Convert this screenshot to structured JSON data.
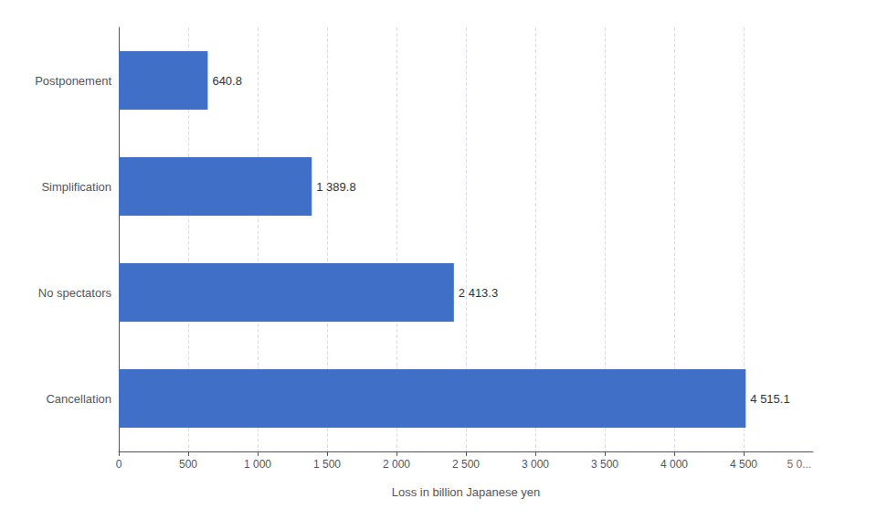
{
  "chart_data": {
    "type": "bar",
    "orientation": "horizontal",
    "categories": [
      "Cancellation",
      "No spectators",
      "Simplification",
      "Postponement"
    ],
    "values": [
      4515.1,
      2413.3,
      1389.8,
      640.8
    ],
    "value_labels": [
      "4 515.1",
      "2 413.3",
      "1 389.8",
      "640.8"
    ],
    "data_labels": true,
    "color": "#3f6fc6",
    "xlabel": "Loss in billion Japanese yen",
    "xlim": [
      0,
      5000
    ],
    "xticks": [
      0,
      500,
      {
        "value": 1000,
        "label": "1 000"
      },
      {
        "value": 1500,
        "label": "1 500"
      },
      {
        "value": 2000,
        "label": "2 000"
      },
      {
        "value": 2500,
        "label": "2 500"
      },
      {
        "value": 3000,
        "label": "3 000"
      },
      {
        "value": 3500,
        "label": "3 500"
      },
      {
        "value": 4000,
        "label": "4 000"
      },
      {
        "value": 4500,
        "label": "4 500"
      }
    ],
    "grid": true,
    "annotations": [
      {
        "text": "5 0...",
        "x": 4900
      }
    ]
  }
}
